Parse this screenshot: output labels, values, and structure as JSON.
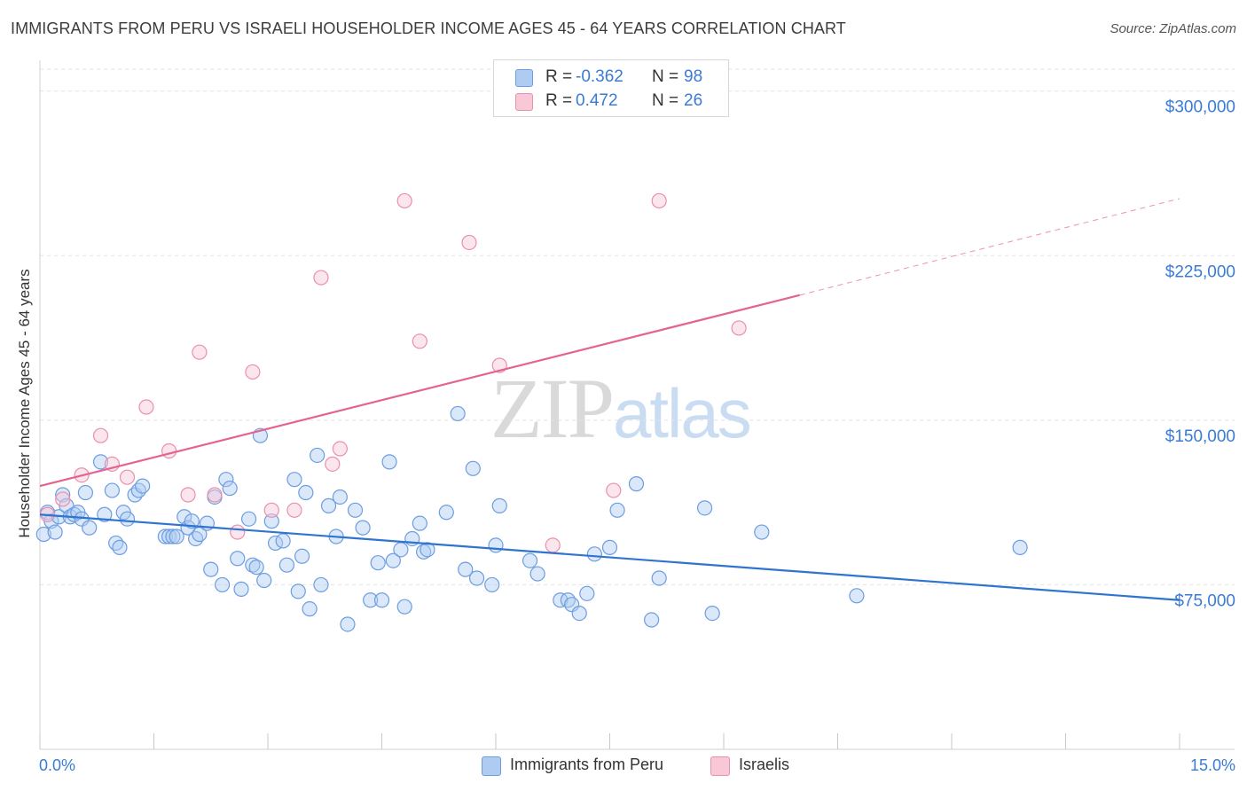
{
  "title": "IMMIGRANTS FROM PERU VS ISRAELI HOUSEHOLDER INCOME AGES 45 - 64 YEARS CORRELATION CHART",
  "source": "Source: ZipAtlas.com",
  "watermark": {
    "zip": "ZIP",
    "atlas": "atlas"
  },
  "legend": {
    "rows": [
      {
        "r_label": "R =",
        "r_value": "-0.362",
        "n_label": "N =",
        "n_value": "98",
        "color": "#aecbf2",
        "border": "#6d9de0"
      },
      {
        "r_label": "R =",
        "r_value": "0.472",
        "n_label": "N =",
        "n_value": "26",
        "color": "#f9c8d7",
        "border": "#ea8fac"
      }
    ]
  },
  "bottom_legend": [
    {
      "label": "Immigrants from Peru",
      "color": "#aecbf2",
      "border": "#6d9de0"
    },
    {
      "label": "Israelis",
      "color": "#f9c8d7",
      "border": "#ea8fac"
    }
  ],
  "chart_data": {
    "type": "scatter",
    "title": "IMMIGRANTS FROM PERU VS ISRAELI HOUSEHOLDER INCOME AGES 45 - 64 YEARS CORRELATION CHART",
    "xlabel": "",
    "ylabel": "Householder Income Ages 45 - 64 years",
    "xlim": [
      0,
      15
    ],
    "ylim": [
      0,
      310000
    ],
    "x_tick_labels": [
      "0.0%",
      "15.0%"
    ],
    "y_ticks": [
      75000,
      150000,
      225000,
      300000
    ],
    "y_tick_labels": [
      "$75,000",
      "$150,000",
      "$225,000",
      "$300,000"
    ],
    "grid": true,
    "legend_position": "top-center",
    "series": [
      {
        "name": "Immigrants from Peru",
        "color": "#6d9de0",
        "fill": "#aecbf2",
        "trend": {
          "x": [
            0.0,
            15.0
          ],
          "y": [
            107000,
            68000
          ],
          "color": "#2f74d0"
        },
        "points": [
          [
            0.05,
            98000
          ],
          [
            0.1,
            108000
          ],
          [
            0.15,
            104000
          ],
          [
            0.2,
            99000
          ],
          [
            0.25,
            106000
          ],
          [
            0.3,
            116000
          ],
          [
            0.35,
            111000
          ],
          [
            0.4,
            106000
          ],
          [
            0.45,
            107000
          ],
          [
            0.5,
            108000
          ],
          [
            0.55,
            105000
          ],
          [
            0.6,
            117000
          ],
          [
            0.65,
            101000
          ],
          [
            0.8,
            131000
          ],
          [
            0.85,
            107000
          ],
          [
            0.95,
            118000
          ],
          [
            1.0,
            94000
          ],
          [
            1.05,
            92000
          ],
          [
            1.1,
            108000
          ],
          [
            1.15,
            105000
          ],
          [
            1.25,
            116000
          ],
          [
            1.3,
            118000
          ],
          [
            1.35,
            120000
          ],
          [
            1.65,
            97000
          ],
          [
            1.7,
            97000
          ],
          [
            1.75,
            97000
          ],
          [
            1.8,
            97000
          ],
          [
            1.9,
            106000
          ],
          [
            1.95,
            101000
          ],
          [
            2.0,
            104000
          ],
          [
            2.05,
            96000
          ],
          [
            2.1,
            98000
          ],
          [
            2.2,
            103000
          ],
          [
            2.25,
            82000
          ],
          [
            2.3,
            115000
          ],
          [
            2.4,
            75000
          ],
          [
            2.45,
            123000
          ],
          [
            2.5,
            119000
          ],
          [
            2.6,
            87000
          ],
          [
            2.65,
            73000
          ],
          [
            2.75,
            105000
          ],
          [
            2.8,
            84000
          ],
          [
            2.85,
            83000
          ],
          [
            2.9,
            143000
          ],
          [
            2.95,
            77000
          ],
          [
            3.05,
            104000
          ],
          [
            3.1,
            94000
          ],
          [
            3.2,
            95000
          ],
          [
            3.25,
            84000
          ],
          [
            3.35,
            123000
          ],
          [
            3.4,
            72000
          ],
          [
            3.45,
            88000
          ],
          [
            3.5,
            117000
          ],
          [
            3.55,
            64000
          ],
          [
            3.65,
            134000
          ],
          [
            3.7,
            75000
          ],
          [
            3.8,
            111000
          ],
          [
            3.9,
            97000
          ],
          [
            3.95,
            115000
          ],
          [
            4.05,
            57000
          ],
          [
            4.15,
            109000
          ],
          [
            4.25,
            101000
          ],
          [
            4.35,
            68000
          ],
          [
            4.45,
            85000
          ],
          [
            4.5,
            68000
          ],
          [
            4.6,
            131000
          ],
          [
            4.65,
            86000
          ],
          [
            4.75,
            91000
          ],
          [
            4.8,
            65000
          ],
          [
            4.9,
            96000
          ],
          [
            5.0,
            103000
          ],
          [
            5.05,
            90000
          ],
          [
            5.1,
            91000
          ],
          [
            5.35,
            108000
          ],
          [
            5.5,
            153000
          ],
          [
            5.6,
            82000
          ],
          [
            5.7,
            128000
          ],
          [
            5.75,
            78000
          ],
          [
            5.95,
            75000
          ],
          [
            6.0,
            93000
          ],
          [
            6.05,
            111000
          ],
          [
            6.45,
            86000
          ],
          [
            6.55,
            80000
          ],
          [
            6.85,
            68000
          ],
          [
            6.95,
            68000
          ],
          [
            7.0,
            66000
          ],
          [
            7.1,
            62000
          ],
          [
            7.2,
            71000
          ],
          [
            7.3,
            89000
          ],
          [
            7.5,
            92000
          ],
          [
            7.6,
            109000
          ],
          [
            7.85,
            121000
          ],
          [
            8.05,
            59000
          ],
          [
            8.15,
            78000
          ],
          [
            8.75,
            110000
          ],
          [
            8.85,
            62000
          ],
          [
            9.5,
            99000
          ],
          [
            10.75,
            70000
          ],
          [
            12.9,
            92000
          ]
        ]
      },
      {
        "name": "Israelis",
        "color": "#ea8fac",
        "fill": "#f9c8d7",
        "trend": {
          "x": [
            0.0,
            10.0
          ],
          "y": [
            120000,
            207000
          ],
          "color": "#e4638f"
        },
        "trend_extension": {
          "x": [
            10.0,
            15.0
          ],
          "y": [
            207000,
            251000
          ]
        },
        "points": [
          [
            0.1,
            107000
          ],
          [
            0.3,
            114000
          ],
          [
            0.55,
            125000
          ],
          [
            0.8,
            143000
          ],
          [
            0.95,
            130000
          ],
          [
            1.15,
            124000
          ],
          [
            1.4,
            156000
          ],
          [
            1.7,
            136000
          ],
          [
            1.95,
            116000
          ],
          [
            2.1,
            181000
          ],
          [
            2.3,
            116000
          ],
          [
            2.6,
            99000
          ],
          [
            2.8,
            172000
          ],
          [
            3.05,
            109000
          ],
          [
            3.35,
            109000
          ],
          [
            3.7,
            215000
          ],
          [
            3.85,
            130000
          ],
          [
            3.95,
            137000
          ],
          [
            4.8,
            250000
          ],
          [
            5.0,
            186000
          ],
          [
            5.65,
            231000
          ],
          [
            6.05,
            175000
          ],
          [
            6.75,
            93000
          ],
          [
            7.55,
            118000
          ],
          [
            8.15,
            250000
          ],
          [
            9.2,
            192000
          ]
        ]
      }
    ]
  }
}
